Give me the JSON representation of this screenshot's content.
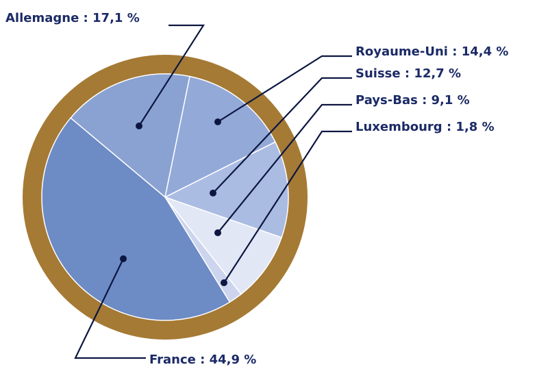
{
  "chart_data": {
    "type": "pie",
    "values": [
      17.1,
      14.4,
      12.7,
      9.1,
      1.8,
      44.9
    ],
    "value_labels": [
      "Allemagne : 17,1 %",
      "Royaume-Uni : 14,4 %",
      "Suisse : 12,7 %",
      "Pays-Bas : 9,1 %",
      "Luxembourg : 1,8 %",
      "France : 44,9 %"
    ],
    "colors": [
      "#8aa2d2",
      "#93a9d8",
      "#abbce2",
      "#e2e7f5",
      "#ccd5ed",
      "#6d8bc5"
    ]
  }
}
